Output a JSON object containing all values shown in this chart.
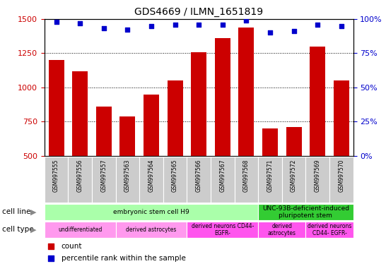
{
  "title": "GDS4669 / ILMN_1651819",
  "samples": [
    "GSM997555",
    "GSM997556",
    "GSM997557",
    "GSM997563",
    "GSM997564",
    "GSM997565",
    "GSM997566",
    "GSM997567",
    "GSM997568",
    "GSM997571",
    "GSM997572",
    "GSM997569",
    "GSM997570"
  ],
  "counts": [
    1200,
    1120,
    860,
    790,
    950,
    1050,
    1255,
    1360,
    1440,
    700,
    710,
    1300,
    1050
  ],
  "percentiles": [
    98,
    97,
    93,
    92,
    95,
    96,
    96,
    96,
    99,
    90,
    91,
    96,
    95
  ],
  "ylim_left": [
    500,
    1500
  ],
  "ylim_right": [
    0,
    100
  ],
  "yticks_left": [
    500,
    750,
    1000,
    1250,
    1500
  ],
  "yticks_right": [
    0,
    25,
    50,
    75,
    100
  ],
  "bar_color": "#cc0000",
  "dot_color": "#0000cc",
  "cell_line_groups": [
    {
      "text": "embryonic stem cell H9",
      "start": 0,
      "end": 9,
      "color": "#aaffaa"
    },
    {
      "text": "UNC-93B-deficient-induced\npluripotent stem",
      "start": 9,
      "end": 13,
      "color": "#33cc33"
    }
  ],
  "cell_type_groups": [
    {
      "text": "undifferentiated",
      "start": 0,
      "end": 3,
      "color": "#ff99ee"
    },
    {
      "text": "derived astrocytes",
      "start": 3,
      "end": 6,
      "color": "#ff99ee"
    },
    {
      "text": "derived neurons CD44-\nEGFR-",
      "start": 6,
      "end": 9,
      "color": "#ff55ee"
    },
    {
      "text": "derived\nastrocytes",
      "start": 9,
      "end": 11,
      "color": "#ff55ee"
    },
    {
      "text": "derived neurons\nCD44- EGFR-",
      "start": 11,
      "end": 13,
      "color": "#ff55ee"
    }
  ],
  "sample_bg_color": "#cccccc",
  "fig_width": 5.46,
  "fig_height": 3.84,
  "dpi": 100
}
